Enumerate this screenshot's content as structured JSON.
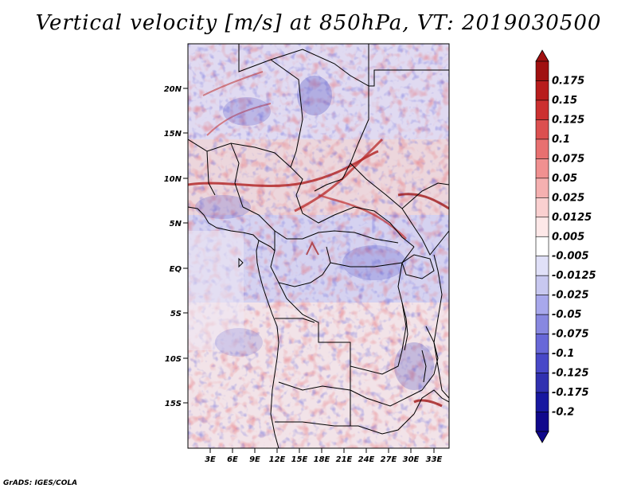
{
  "title": "Vertical velocity [m/s] at 850hPa, VT: 2019030500",
  "credit": "GrADS: IGES/COLA",
  "map": {
    "lon_range": [
      0,
      35
    ],
    "lat_range": [
      -20,
      25
    ],
    "lat_ticks": [
      "20N",
      "15N",
      "10N",
      "5N",
      "EQ",
      "5S",
      "10S",
      "15S"
    ],
    "lon_ticks": [
      "3E",
      "6E",
      "9E",
      "12E",
      "15E",
      "18E",
      "21E",
      "24E",
      "27E",
      "30E",
      "33E"
    ],
    "field": "vertical velocity",
    "units": "m/s",
    "level": "850hPa"
  },
  "colorbar": {
    "labels": [
      "0.175",
      "0.15",
      "0.125",
      "0.1",
      "0.075",
      "0.05",
      "0.025",
      "0.0125",
      "0.005",
      "-0.005",
      "-0.0125",
      "-0.025",
      "-0.05",
      "-0.075",
      "-0.1",
      "-0.125",
      "-0.175",
      "-0.2"
    ],
    "colors": [
      "#a01010",
      "#b81c1c",
      "#cc3030",
      "#dc5050",
      "#e87070",
      "#f09090",
      "#f5b0b0",
      "#fad0d0",
      "#fde8e8",
      "#ffffff",
      "#e0e0f8",
      "#c8c8f0",
      "#a8a8ec",
      "#8888e0",
      "#6868d8",
      "#4848c8",
      "#3030b0",
      "#1818a0",
      "#10088c"
    ]
  }
}
